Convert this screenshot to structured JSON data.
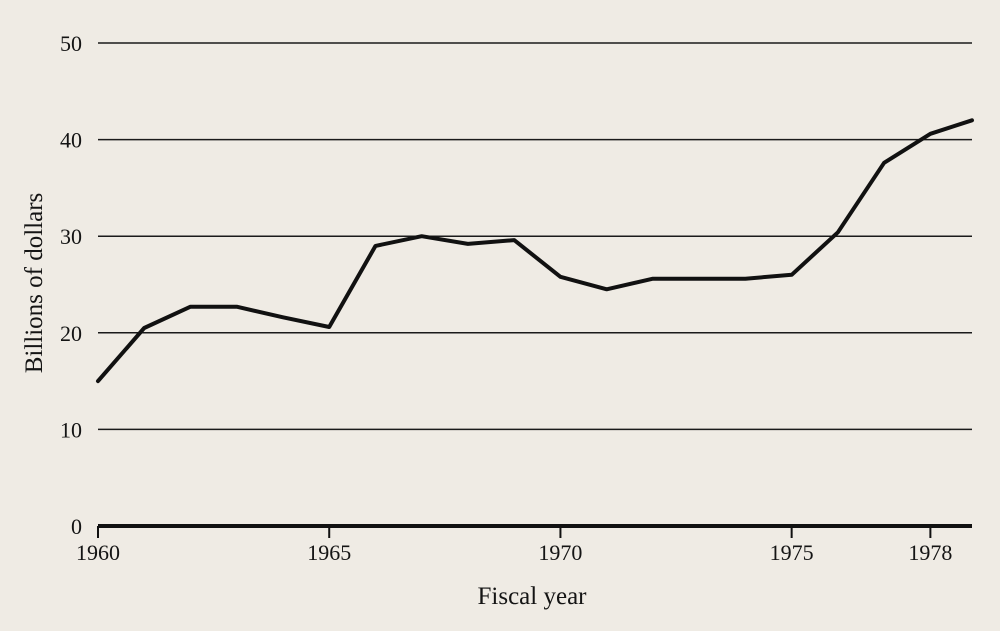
{
  "chart_data": {
    "type": "line",
    "title": "",
    "xlabel": "Fiscal year",
    "ylabel": "Billions of dollars",
    "xlim": [
      1960,
      1978.9
    ],
    "ylim": [
      0,
      50
    ],
    "x_ticks": [
      "1960",
      "1965",
      "1970",
      "1975",
      "1978"
    ],
    "y_ticks": [
      "0",
      "10",
      "20",
      "30",
      "40",
      "50"
    ],
    "grid": true,
    "colors": {
      "line": "#111111",
      "grid": "#1a1a1a",
      "background": "#efebe4"
    },
    "series": [
      {
        "name": "",
        "x": [
          1960,
          1961,
          1962,
          1963,
          1964,
          1965,
          1966,
          1967,
          1968,
          1969,
          1970,
          1971,
          1972,
          1973,
          1974,
          1975,
          1976,
          1977,
          1978,
          1978.9
        ],
        "y": [
          15,
          20.5,
          22.7,
          22.7,
          21.6,
          20.6,
          29,
          30,
          29.2,
          29.6,
          25.8,
          24.5,
          25.6,
          25.6,
          25.6,
          26,
          30.4,
          37.6,
          40.6,
          42
        ]
      }
    ]
  }
}
